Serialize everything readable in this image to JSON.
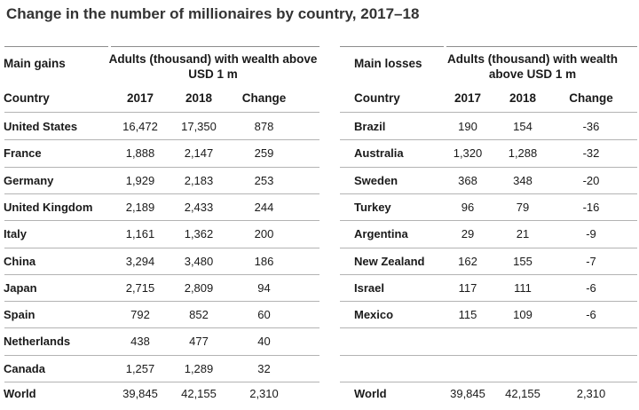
{
  "chart_data": {
    "type": "table",
    "title": "Change in the number of millionaires by country, 2017–18",
    "value_header": "Adults (thousand) with wealth above USD 1 m",
    "gains": {
      "section_label": "Main gains",
      "columns": [
        "Country",
        "2017",
        "2018",
        "Change"
      ],
      "rows": [
        [
          "United States",
          "16,472",
          "17,350",
          "878"
        ],
        [
          "France",
          "1,888",
          "2,147",
          "259"
        ],
        [
          "Germany",
          "1,929",
          "2,183",
          "253"
        ],
        [
          "United Kingdom",
          "2,189",
          "2,433",
          "244"
        ],
        [
          "Italy",
          "1,161",
          "1,362",
          "200"
        ],
        [
          "China",
          "3,294",
          "3,480",
          "186"
        ],
        [
          "Japan",
          "2,715",
          "2,809",
          "94"
        ],
        [
          "Spain",
          "792",
          "852",
          "60"
        ],
        [
          "Netherlands",
          "438",
          "477",
          "40"
        ],
        [
          "Canada",
          "1,257",
          "1,289",
          "32"
        ]
      ],
      "total": [
        "World",
        "39,845",
        "42,155",
        "2,310"
      ]
    },
    "losses": {
      "section_label": "Main losses",
      "columns": [
        "Country",
        "2017",
        "2018",
        "Change"
      ],
      "rows": [
        [
          "Brazil",
          "190",
          "154",
          "-36"
        ],
        [
          "Australia",
          "1,320",
          "1,288",
          "-32"
        ],
        [
          "Sweden",
          "368",
          "348",
          "-20"
        ],
        [
          "Turkey",
          "96",
          "79",
          "-16"
        ],
        [
          "Argentina",
          "29",
          "21",
          "-9"
        ],
        [
          "New Zealand",
          "162",
          "155",
          "-7"
        ],
        [
          "Israel",
          "117",
          "111",
          "-6"
        ],
        [
          "Mexico",
          "115",
          "109",
          "-6"
        ]
      ],
      "total": [
        "World",
        "39,845",
        "42,155",
        "2,310"
      ]
    }
  }
}
